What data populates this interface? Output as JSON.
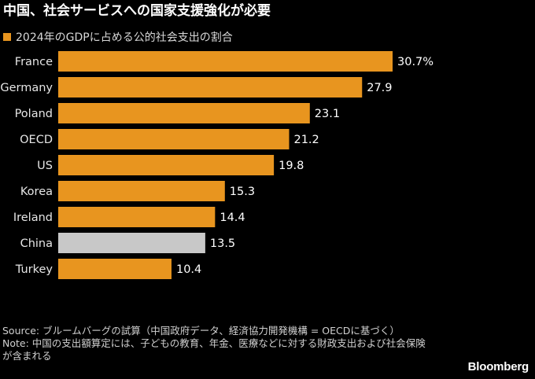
{
  "header": {
    "title": "中国、社会サービスへの国家支援強化が必要",
    "legend_label": "2024年のGDPに占める公的社会支出の割合"
  },
  "colors": {
    "bar": "#E8951F",
    "highlight": "#C8C8C8",
    "background": "#000000"
  },
  "chart_data": {
    "type": "bar",
    "orientation": "horizontal",
    "title": "中国、社会サービスへの国家支援強化が必要",
    "series": [
      {
        "name": "2024年のGDPに占める公的社会支出の割合",
        "values": [
          30.7,
          27.9,
          23.1,
          21.2,
          19.8,
          15.3,
          14.4,
          13.5,
          10.4
        ]
      }
    ],
    "categories": [
      "France",
      "Germany",
      "Poland",
      "OECD",
      "US",
      "Korea",
      "Ireland",
      "China",
      "Turkey"
    ],
    "values": [
      30.7,
      27.9,
      23.1,
      21.2,
      19.8,
      15.3,
      14.4,
      13.5,
      10.4
    ],
    "value_labels": [
      "30.7%",
      "27.9",
      "23.1",
      "21.2",
      "19.8",
      "15.3",
      "14.4",
      "13.5",
      "10.4"
    ],
    "highlight": "China",
    "xlim": [
      0,
      30.7
    ],
    "grid": false,
    "legend_position": "top-left"
  },
  "footer": {
    "source": "Source: ブルームバーグの試算（中国政府データ、経済協力開発機構 = OECDに基づく）",
    "note": "Note: 中国の支出額算定には、子どもの教育、年金、医療などに対する財政支出および社会保険が含まれる",
    "brand": "Bloomberg"
  }
}
